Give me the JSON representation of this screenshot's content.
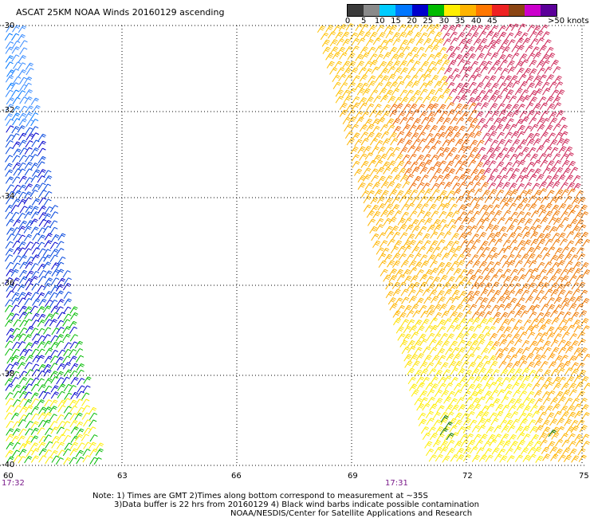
{
  "title": "ASCAT 25KM NOAA Winds 20160129 ascending",
  "scale": {
    "colors": [
      "#3a3a3a",
      "#8a8a8a",
      "#00ccff",
      "#0077ff",
      "#0000cc",
      "#00bb00",
      "#ffee00",
      "#ffb400",
      "#ff7700",
      "#ee2222",
      "#8b4513",
      "#cc00cc",
      "#5b0099"
    ],
    "labels": [
      "0",
      "5",
      "10",
      "15",
      "20",
      "25",
      "30",
      "35",
      "40",
      "45"
    ],
    "units": ">50 knots"
  },
  "lat_labels": [
    "-30",
    "-32",
    "-34",
    "-36",
    "-38",
    "-40"
  ],
  "lon_labels": [
    "60",
    "63",
    "66",
    "69",
    "72",
    "75"
  ],
  "times": [
    "17:32",
    "17:31"
  ],
  "notes": [
    "Note: 1) Times are GMT 2)Times along bottom correspond to measurement at ~35S",
    "3)Data buffer is 22 hrs from 20160129 4) Black wind barbs indicate possible contamination",
    "NOAA/NESDIS/Center for Satellite Applications and Research"
  ]
}
